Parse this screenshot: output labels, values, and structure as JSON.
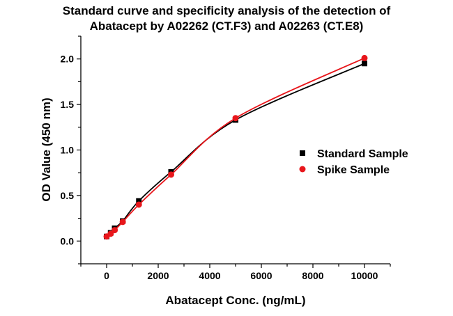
{
  "chart_data": {
    "type": "scatter",
    "title_lines": [
      "Standard curve and  specificity analysis of the detection of",
      "Abatacept by A02262 (CT.F3) and A02263 (CT.E8)"
    ],
    "xlabel": "Abatacept Conc. (ng/mL)",
    "ylabel": "OD Value (450 nm)",
    "xlim": [
      -1000,
      11000
    ],
    "ylim": [
      -0.25,
      2.25
    ],
    "xticks": [
      0,
      2000,
      4000,
      6000,
      8000,
      10000
    ],
    "yticks": [
      0.0,
      0.5,
      1.0,
      1.5,
      2.0
    ],
    "ytick_labels": [
      "0.0",
      "0.5",
      "1.0",
      "1.5",
      "2.0"
    ],
    "grid": false,
    "legend_position": "right",
    "series": [
      {
        "name": "Standard Sample",
        "marker": "square",
        "color": "#000000",
        "x": [
          0,
          156,
          312,
          625,
          1250,
          2500,
          5000,
          10000
        ],
        "y": [
          0.05,
          0.09,
          0.14,
          0.22,
          0.44,
          0.76,
          1.33,
          1.95
        ]
      },
      {
        "name": "Spike Sample",
        "marker": "circle",
        "color": "#e8161b",
        "x": [
          0,
          156,
          312,
          625,
          1250,
          2500,
          5000,
          10000
        ],
        "y": [
          0.05,
          0.08,
          0.12,
          0.21,
          0.4,
          0.73,
          1.35,
          2.01
        ]
      }
    ]
  }
}
